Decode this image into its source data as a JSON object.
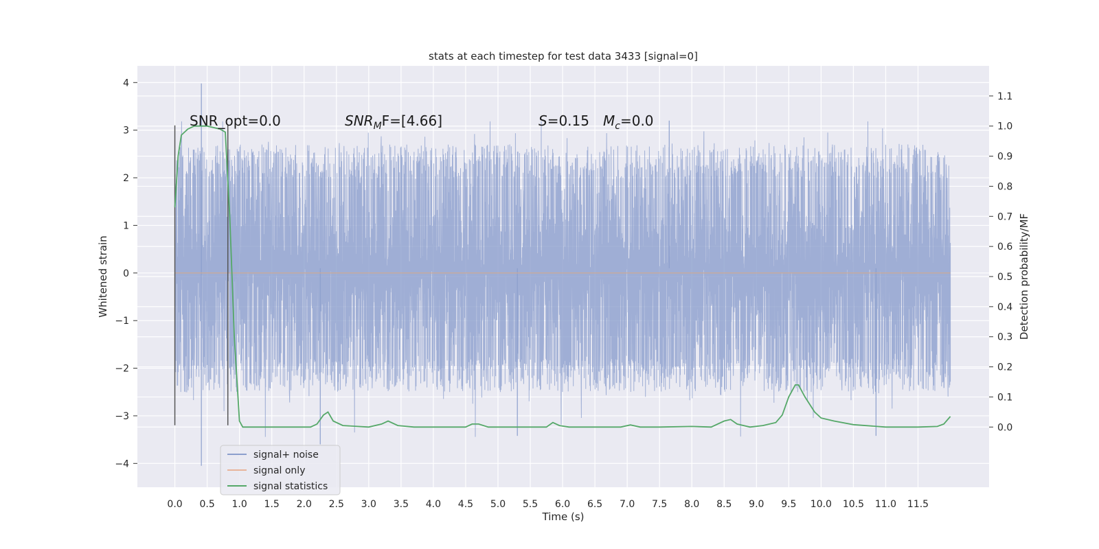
{
  "chart_data": {
    "type": "line",
    "title": "stats at each timestep for test data 3433 [signal=0]",
    "xlabel": "Time (s)",
    "ylabel": "Whitened strain",
    "ylabel_right": "Detection probability/MF",
    "xlim": [
      -0.58,
      12.6
    ],
    "ylim": [
      -4.5,
      4.35
    ],
    "ylim_right": [
      -0.2,
      1.2
    ],
    "x_ticks": [
      "0.0",
      "0.5",
      "1.0",
      "1.5",
      "2.0",
      "2.5",
      "3.0",
      "3.5",
      "4.0",
      "4.5",
      "5.0",
      "5.5",
      "6.0",
      "6.5",
      "7.0",
      "7.5",
      "8.0",
      "8.5",
      "9.0",
      "9.5",
      "10.0",
      "10.5",
      "11.0",
      "11.5"
    ],
    "y_ticks": [
      "4",
      "3",
      "2",
      "1",
      "0",
      "−1",
      "−2",
      "−3",
      "−4"
    ],
    "y_ticks_right": [
      "1.1",
      "1.0",
      "0.9",
      "0.8",
      "0.7",
      "0.6",
      "0.5",
      "0.4",
      "0.3",
      "0.2",
      "0.1",
      "0.0"
    ],
    "grid": true,
    "legend": {
      "placement": "lower-left",
      "entries": [
        "signal+ noise",
        "signal only",
        "signal statistics"
      ]
    },
    "annotations": {
      "snr_opt": "SNR_opt=0.0",
      "snr_mf_var": "SNR",
      "snr_mf_sub": "M",
      "snr_mf_rest": "F=[4.66]",
      "s_var": "S",
      "s_rest": "=0.15",
      "mc_var": "M",
      "mc_sub": "c",
      "mc_rest": "=0.0"
    },
    "series": [
      {
        "name": "signal+ noise",
        "color": "#8c9fcd",
        "x_range": [
          0.0,
          12.0
        ],
        "envelope_typical": [
          -1.8,
          2.0
        ],
        "y_min": -4.05,
        "y_max": 3.98,
        "notable_peaks": [
          {
            "x": 0.41,
            "y": 3.98
          },
          {
            "x": 0.41,
            "y": -4.05
          },
          {
            "x": 2.25,
            "y": -3.6
          },
          {
            "x": 5.3,
            "y": -3.42
          },
          {
            "x": 10.85,
            "y": -3.42
          },
          {
            "x": 7.65,
            "y": 3.2
          }
        ]
      },
      {
        "name": "signal only",
        "color": "#dd8452",
        "x": [
          0.0,
          12.0
        ],
        "y": [
          0.0,
          0.0
        ]
      },
      {
        "name": "signal statistics",
        "color": "#55a868",
        "x": [
          0.0,
          0.05,
          0.1,
          0.2,
          0.3,
          0.5,
          0.7,
          0.78,
          0.85,
          0.92,
          1.0,
          1.05,
          1.1,
          1.5,
          2.0,
          2.1,
          2.2,
          2.3,
          2.37,
          2.45,
          2.6,
          3.0,
          3.2,
          3.3,
          3.45,
          3.7,
          4.0,
          4.5,
          4.6,
          4.7,
          4.85,
          5.0,
          5.5,
          5.75,
          5.85,
          5.95,
          6.1,
          6.5,
          6.9,
          7.05,
          7.2,
          7.5,
          8.0,
          8.3,
          8.5,
          8.6,
          8.7,
          8.9,
          9.1,
          9.3,
          9.4,
          9.5,
          9.6,
          9.65,
          9.75,
          9.9,
          10.0,
          10.2,
          10.5,
          11.0,
          11.5,
          11.8,
          11.9,
          12.0
        ],
        "y": [
          0.73,
          0.9,
          0.97,
          0.99,
          1.0,
          1.0,
          0.99,
          0.98,
          0.7,
          0.3,
          0.02,
          0.0,
          0.0,
          0.0,
          0.0,
          0.0,
          0.01,
          0.04,
          0.05,
          0.02,
          0.005,
          0.0,
          0.01,
          0.02,
          0.005,
          0.0,
          0.0,
          0.0,
          0.01,
          0.01,
          0.0,
          0.0,
          0.0,
          0.0,
          0.015,
          0.005,
          0.0,
          0.0,
          0.0,
          0.007,
          0.0,
          0.0,
          0.002,
          0.0,
          0.02,
          0.025,
          0.01,
          0.0,
          0.005,
          0.015,
          0.04,
          0.1,
          0.14,
          0.14,
          0.1,
          0.05,
          0.03,
          0.02,
          0.008,
          0.0,
          0.0,
          0.002,
          0.01,
          0.035
        ]
      }
    ],
    "vertical_markers": [
      {
        "x": 0.0,
        "ymin": -3.2,
        "ymax": 3.1,
        "color": "#555555"
      },
      {
        "x": 0.82,
        "ymin": -3.2,
        "ymax": 3.1,
        "color": "#555555"
      }
    ]
  }
}
